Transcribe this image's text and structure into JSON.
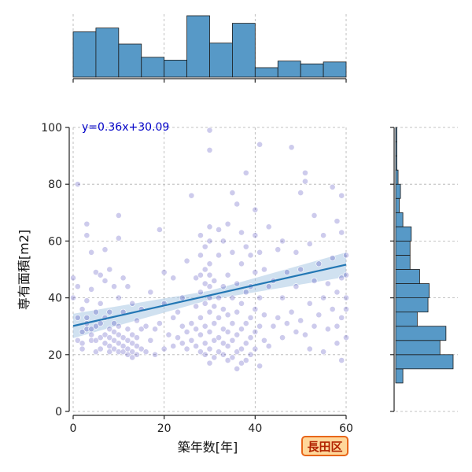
{
  "ward_badge": "長田区",
  "colors": {
    "bar": "#5799c7",
    "point": "#1a14a8",
    "fit": "#2277b4",
    "band": "#a9c8e4",
    "eq_text": "#0000c8",
    "badge_border": "#e8661a",
    "badge_fill": "#ffd79a",
    "badge_text": "#b22400"
  },
  "chart_data": {
    "type": "scatter",
    "xlabel": "築年数[年]",
    "ylabel": "専有面積[m2]",
    "xlim": [
      0,
      60
    ],
    "ylim": [
      0,
      100
    ],
    "xticks": [
      0,
      20,
      40,
      60
    ],
    "yticks": [
      0,
      20,
      40,
      60,
      80,
      100
    ],
    "grid": true,
    "regression": {
      "label": "y=0.36x+30.09",
      "slope": 0.36,
      "intercept": 30.09
    },
    "points": [
      [
        0,
        47
      ],
      [
        0,
        40
      ],
      [
        1,
        44
      ],
      [
        1,
        80
      ],
      [
        1,
        33
      ],
      [
        1,
        25
      ],
      [
        2,
        22
      ],
      [
        2,
        24
      ],
      [
        2,
        28
      ],
      [
        2,
        36
      ],
      [
        3,
        29
      ],
      [
        3,
        31
      ],
      [
        3,
        33
      ],
      [
        3,
        39
      ],
      [
        3,
        66
      ],
      [
        3,
        62
      ],
      [
        4,
        25
      ],
      [
        4,
        27
      ],
      [
        4,
        29
      ],
      [
        4,
        43
      ],
      [
        4,
        56
      ],
      [
        5,
        21
      ],
      [
        5,
        25
      ],
      [
        5,
        30
      ],
      [
        5,
        35
      ],
      [
        5,
        49
      ],
      [
        6,
        22
      ],
      [
        6,
        26
      ],
      [
        6,
        31
      ],
      [
        6,
        38
      ],
      [
        6,
        48
      ],
      [
        7,
        24
      ],
      [
        7,
        27
      ],
      [
        7,
        33
      ],
      [
        7,
        46
      ],
      [
        7,
        57
      ],
      [
        8,
        21
      ],
      [
        8,
        23
      ],
      [
        8,
        26
      ],
      [
        8,
        29
      ],
      [
        8,
        35
      ],
      [
        8,
        50
      ],
      [
        9,
        22
      ],
      [
        9,
        25
      ],
      [
        9,
        28
      ],
      [
        9,
        31
      ],
      [
        9,
        44
      ],
      [
        10,
        21
      ],
      [
        10,
        24
      ],
      [
        10,
        27
      ],
      [
        10,
        30
      ],
      [
        10,
        40
      ],
      [
        10,
        61
      ],
      [
        10,
        69
      ],
      [
        11,
        21
      ],
      [
        11,
        23
      ],
      [
        11,
        26
      ],
      [
        11,
        35
      ],
      [
        11,
        47
      ],
      [
        12,
        20
      ],
      [
        12,
        22
      ],
      [
        12,
        25
      ],
      [
        12,
        29
      ],
      [
        12,
        44
      ],
      [
        13,
        19
      ],
      [
        13,
        21
      ],
      [
        13,
        24
      ],
      [
        13,
        27
      ],
      [
        13,
        38
      ],
      [
        14,
        20
      ],
      [
        14,
        23
      ],
      [
        14,
        26
      ],
      [
        14,
        32
      ],
      [
        15,
        22
      ],
      [
        15,
        29
      ],
      [
        15,
        36
      ],
      [
        16,
        21
      ],
      [
        16,
        30
      ],
      [
        17,
        25
      ],
      [
        17,
        42
      ],
      [
        18,
        20
      ],
      [
        18,
        29
      ],
      [
        19,
        31
      ],
      [
        19,
        64
      ],
      [
        20,
        22
      ],
      [
        20,
        38
      ],
      [
        20,
        49
      ],
      [
        21,
        27
      ],
      [
        22,
        23
      ],
      [
        22,
        33
      ],
      [
        22,
        47
      ],
      [
        23,
        26
      ],
      [
        23,
        35
      ],
      [
        24,
        24
      ],
      [
        24,
        30
      ],
      [
        24,
        40
      ],
      [
        25,
        22
      ],
      [
        25,
        28
      ],
      [
        25,
        53
      ],
      [
        26,
        25
      ],
      [
        26,
        31
      ],
      [
        26,
        76
      ],
      [
        27,
        23
      ],
      [
        27,
        29
      ],
      [
        27,
        37
      ],
      [
        27,
        47
      ],
      [
        28,
        21
      ],
      [
        28,
        27
      ],
      [
        28,
        33
      ],
      [
        28,
        42
      ],
      [
        28,
        48
      ],
      [
        28,
        55
      ],
      [
        28,
        62
      ],
      [
        29,
        20
      ],
      [
        29,
        24
      ],
      [
        29,
        30
      ],
      [
        29,
        38
      ],
      [
        29,
        45
      ],
      [
        29,
        50
      ],
      [
        29,
        58
      ],
      [
        30,
        17
      ],
      [
        30,
        22
      ],
      [
        30,
        28
      ],
      [
        30,
        35
      ],
      [
        30,
        40
      ],
      [
        30,
        44
      ],
      [
        30,
        48
      ],
      [
        30,
        52
      ],
      [
        30,
        60
      ],
      [
        30,
        65
      ],
      [
        30,
        92
      ],
      [
        30,
        99
      ],
      [
        31,
        19
      ],
      [
        31,
        25
      ],
      [
        31,
        31
      ],
      [
        31,
        37
      ],
      [
        31,
        46
      ],
      [
        32,
        21
      ],
      [
        32,
        26
      ],
      [
        32,
        33
      ],
      [
        32,
        40
      ],
      [
        32,
        55
      ],
      [
        32,
        64
      ],
      [
        33,
        20
      ],
      [
        33,
        24
      ],
      [
        33,
        29
      ],
      [
        33,
        36
      ],
      [
        33,
        44
      ],
      [
        33,
        60
      ],
      [
        34,
        18
      ],
      [
        34,
        23
      ],
      [
        34,
        28
      ],
      [
        34,
        34
      ],
      [
        34,
        48
      ],
      [
        34,
        66
      ],
      [
        35,
        19
      ],
      [
        35,
        25
      ],
      [
        35,
        31
      ],
      [
        35,
        40
      ],
      [
        35,
        56
      ],
      [
        35,
        77
      ],
      [
        36,
        15
      ],
      [
        36,
        21
      ],
      [
        36,
        27
      ],
      [
        36,
        35
      ],
      [
        36,
        45
      ],
      [
        36,
        73
      ],
      [
        37,
        17
      ],
      [
        37,
        22
      ],
      [
        37,
        29
      ],
      [
        37,
        38
      ],
      [
        37,
        52
      ],
      [
        37,
        63
      ],
      [
        38,
        18
      ],
      [
        38,
        24
      ],
      [
        38,
        31
      ],
      [
        38,
        42
      ],
      [
        38,
        58
      ],
      [
        38,
        84
      ],
      [
        39,
        20
      ],
      [
        39,
        26
      ],
      [
        39,
        33
      ],
      [
        39,
        44
      ],
      [
        39,
        55
      ],
      [
        40,
        22
      ],
      [
        40,
        28
      ],
      [
        40,
        36
      ],
      [
        40,
        49
      ],
      [
        40,
        62
      ],
      [
        40,
        71
      ],
      [
        41,
        16
      ],
      [
        41,
        30
      ],
      [
        41,
        40
      ],
      [
        41,
        56
      ],
      [
        41,
        94
      ],
      [
        42,
        25
      ],
      [
        42,
        34
      ],
      [
        42,
        50
      ],
      [
        43,
        23
      ],
      [
        43,
        44
      ],
      [
        43,
        65
      ],
      [
        44,
        30
      ],
      [
        44,
        46
      ],
      [
        45,
        33
      ],
      [
        45,
        57
      ],
      [
        46,
        26
      ],
      [
        46,
        40
      ],
      [
        46,
        60
      ],
      [
        47,
        31
      ],
      [
        47,
        49
      ],
      [
        48,
        35
      ],
      [
        48,
        93
      ],
      [
        49,
        28
      ],
      [
        49,
        44
      ],
      [
        49,
        56
      ],
      [
        50,
        32
      ],
      [
        50,
        50
      ],
      [
        50,
        77
      ],
      [
        51,
        27
      ],
      [
        51,
        84
      ],
      [
        51,
        81
      ],
      [
        52,
        22
      ],
      [
        52,
        38
      ],
      [
        52,
        59
      ],
      [
        53,
        30
      ],
      [
        53,
        46
      ],
      [
        53,
        69
      ],
      [
        54,
        34
      ],
      [
        54,
        52
      ],
      [
        55,
        21
      ],
      [
        55,
        40
      ],
      [
        55,
        62
      ],
      [
        56,
        29
      ],
      [
        56,
        45
      ],
      [
        57,
        36
      ],
      [
        57,
        54
      ],
      [
        57,
        79
      ],
      [
        58,
        24
      ],
      [
        58,
        30
      ],
      [
        58,
        42
      ],
      [
        58,
        67
      ],
      [
        59,
        18
      ],
      [
        59,
        33
      ],
      [
        59,
        47
      ],
      [
        59,
        63
      ],
      [
        59,
        76
      ],
      [
        60,
        48
      ],
      [
        60,
        55
      ],
      [
        60,
        26
      ],
      [
        60,
        36
      ],
      [
        60,
        40
      ]
    ],
    "hist_x": {
      "bins": [
        0,
        5,
        10,
        15,
        20,
        25,
        30,
        35,
        40,
        45,
        50,
        55,
        60
      ],
      "counts": [
        48,
        52,
        35,
        21,
        18,
        65,
        36,
        57,
        10,
        17,
        14,
        16
      ]
    },
    "hist_y": {
      "bins": [
        10,
        15,
        20,
        25,
        30,
        35,
        40,
        45,
        50,
        55,
        60,
        65,
        70,
        75,
        80,
        85,
        90,
        95,
        100
      ],
      "counts": [
        6,
        48,
        37,
        42,
        18,
        27,
        28,
        20,
        12,
        12,
        13,
        6,
        3,
        4,
        2,
        1,
        1,
        1
      ]
    }
  }
}
